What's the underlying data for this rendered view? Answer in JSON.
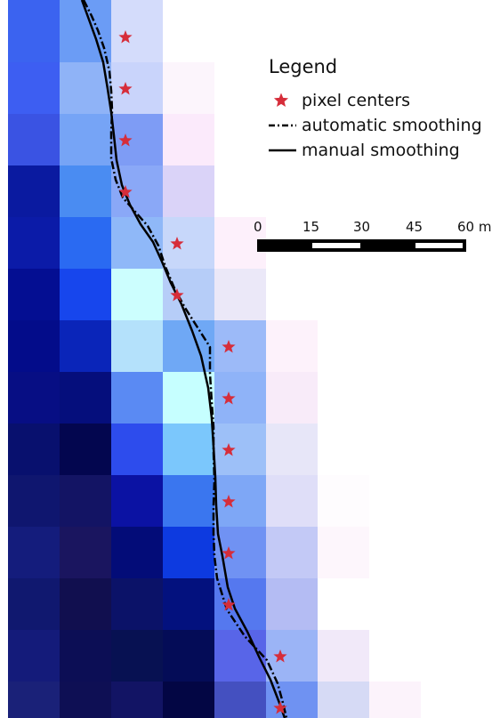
{
  "legend": {
    "title": "Legend",
    "items": [
      {
        "symbol": "star",
        "color": "#d62d3a",
        "label": "pixel centers"
      },
      {
        "symbol": "dash-dot-line",
        "color": "#000000",
        "label": "automatic smoothing"
      },
      {
        "symbol": "solid-line",
        "color": "#000000",
        "label": "manual smoothing"
      }
    ]
  },
  "scale_bar": {
    "tick_labels": [
      "0",
      "15",
      "30",
      "45",
      "60 m"
    ]
  },
  "colors": {
    "star": "#d62d3a",
    "line": "#000000",
    "background": "#ffffff"
  },
  "raster": [
    [
      "#3b63f0",
      "#6b9cf5",
      "#d4dcfb",
      null,
      null
    ],
    [
      "#3d5ef2",
      "#8fb3f7",
      "#c9d4fb",
      "#fcf5fc",
      null
    ],
    [
      "#3a53e3",
      "#76a4f6",
      "#7e9cf5",
      "#fbeafb",
      null
    ],
    [
      "#0a1aa0",
      "#4a8cf2",
      "#8aa8f7",
      "#dad3f8",
      null
    ],
    [
      "#0b1ba8",
      "#2a6af2",
      "#8fb8f8",
      "#c7d7fa",
      "#fdf0fb",
      null
    ],
    [
      "#040e92",
      "#1746ed",
      "#ccfefe",
      "#b6cdf8",
      "#ebe8f8",
      null
    ],
    [
      "#030c8a",
      "#0a25b9",
      "#b4e1fb",
      "#6fa8f5",
      "#9cbaf8",
      "#fdf2fb"
    ],
    [
      "#070e84",
      "#050e7c",
      "#5a8af3",
      "#c6ffff",
      "#8fb3f8",
      "#f8ebf9"
    ],
    [
      "#08106e",
      "#03064f",
      "#2d4ced",
      "#7bc7fc",
      "#9dc0f8",
      "#e7e6f8"
    ],
    [
      "#0f166f",
      "#131464",
      "#0b12a3",
      "#3a76ef",
      "#7ea7f6",
      "#dfdef8",
      "#fefcfe"
    ],
    [
      "#141c7c",
      "#1a155f",
      "#030c78",
      "#0d3ae0",
      "#7092f3",
      "#c3c9f6",
      "#fdf6fc"
    ],
    [
      "#10186f",
      "#110f4f",
      "#0b1268",
      "#03117e",
      "#5578ef",
      "#b4bcf3",
      null
    ],
    [
      "#141b7a",
      "#0c0e55",
      "#071152",
      "#040c57",
      "#5865e8",
      "#9bb4f6",
      "#f1e9f9"
    ],
    [
      "#1a2178",
      "#0e0f54",
      "#121464",
      "#030644",
      "#4450c0",
      "#6f92f2",
      "#d6daf5",
      "#fcf3fb"
    ]
  ],
  "pixel_centers": [
    [
      2,
      0
    ],
    [
      2,
      1
    ],
    [
      2,
      2
    ],
    [
      2,
      3
    ],
    [
      3,
      4
    ],
    [
      3,
      5
    ],
    [
      4,
      6
    ],
    [
      4,
      7
    ],
    [
      4,
      8
    ],
    [
      4,
      9
    ],
    [
      4,
      10
    ],
    [
      4,
      11
    ],
    [
      5,
      12
    ],
    [
      5,
      13
    ]
  ]
}
